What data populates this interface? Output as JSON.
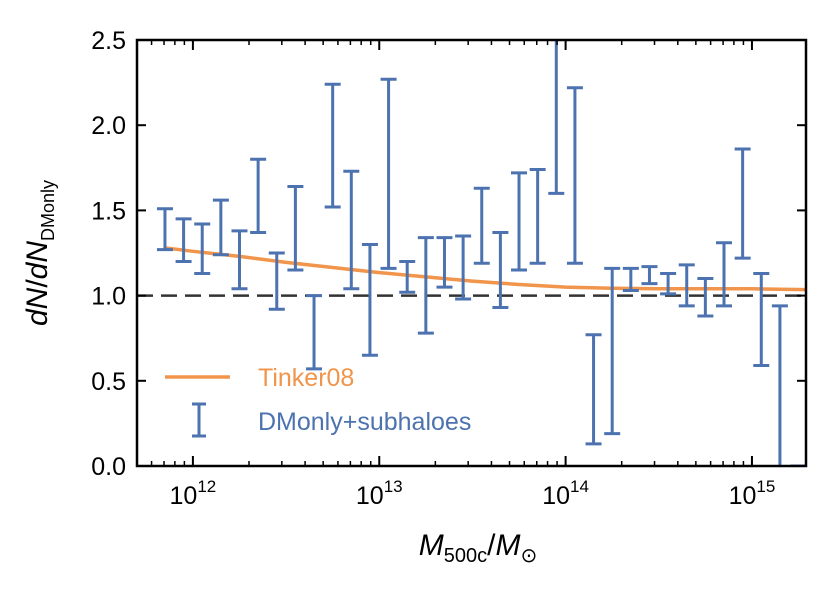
{
  "chart_data": {
    "type": "errorbar",
    "xscale": "log",
    "xlim_log10": [
      11.7,
      15.29
    ],
    "ylim": [
      0.0,
      2.5
    ],
    "xlabel": {
      "main": "M",
      "sub": "500c",
      "sep": "/",
      "main2": "M",
      "sub2": "⊙"
    },
    "ylabel": {
      "a": "dN",
      "sep": "/",
      "b": "dN",
      "sub": "DMonly"
    },
    "x_ticks": [
      {
        "base": "10",
        "exp": "12",
        "log10": 12
      },
      {
        "base": "10",
        "exp": "13",
        "log10": 13
      },
      {
        "base": "10",
        "exp": "14",
        "log10": 14
      },
      {
        "base": "10",
        "exp": "15",
        "log10": 15
      }
    ],
    "y_ticks": [
      {
        "label": "0.0",
        "value": 0.0
      },
      {
        "label": "0.5",
        "value": 0.5
      },
      {
        "label": "1.0",
        "value": 1.0
      },
      {
        "label": "1.5",
        "value": 1.5
      },
      {
        "label": "2.0",
        "value": 2.0
      },
      {
        "label": "2.5",
        "value": 2.5
      }
    ],
    "reference_line": {
      "y": 1.0,
      "style": "dashed",
      "color": "#333333"
    },
    "series": [
      {
        "name": "Tinker08",
        "kind": "line",
        "color": "#f0954b",
        "log10_x": [
          11.85,
          12.0,
          12.25,
          12.5,
          12.75,
          13.0,
          13.25,
          13.5,
          13.75,
          14.0,
          14.25,
          14.5,
          14.75,
          15.0,
          15.29
        ],
        "y": [
          1.28,
          1.26,
          1.23,
          1.195,
          1.165,
          1.135,
          1.11,
          1.085,
          1.065,
          1.05,
          1.043,
          1.04,
          1.04,
          1.04,
          1.035
        ]
      },
      {
        "name": "DMonly+subhaloes",
        "kind": "errorbar",
        "color": "#4c72b0",
        "log10_x": [
          11.85,
          11.95,
          12.05,
          12.15,
          12.25,
          12.35,
          12.45,
          12.55,
          12.65,
          12.75,
          12.85,
          12.95,
          13.05,
          13.15,
          13.25,
          13.35,
          13.45,
          13.55,
          13.65,
          13.75,
          13.85,
          13.95,
          14.05,
          14.15,
          14.25,
          14.35,
          14.45,
          14.55,
          14.65,
          14.75,
          14.85,
          14.95,
          15.05,
          15.15,
          15.25
        ],
        "y_low": [
          1.27,
          1.2,
          1.13,
          1.24,
          1.04,
          1.37,
          0.92,
          1.15,
          0.57,
          1.52,
          1.04,
          0.65,
          1.16,
          1.02,
          0.78,
          1.05,
          0.98,
          1.19,
          0.93,
          1.15,
          1.19,
          1.6,
          1.19,
          0.13,
          0.19,
          1.03,
          1.07,
          1.01,
          0.94,
          0.88,
          0.94,
          1.22,
          0.59,
          -0.05,
          0.0
        ],
        "y_high": [
          1.51,
          1.45,
          1.42,
          1.56,
          1.38,
          1.8,
          1.25,
          1.64,
          1.0,
          2.24,
          1.73,
          1.3,
          2.27,
          1.2,
          1.34,
          1.34,
          1.35,
          1.63,
          1.37,
          1.72,
          1.74,
          2.6,
          2.22,
          0.77,
          1.16,
          1.16,
          1.17,
          1.13,
          1.18,
          1.1,
          1.31,
          1.86,
          1.13,
          0.94,
          0.0
        ]
      }
    ],
    "legend": {
      "placement": "lower-left",
      "items": [
        {
          "label": "Tinker08",
          "color": "#f0954b",
          "marker": "line"
        },
        {
          "label": "DMonly+subhaloes",
          "color": "#4c72b0",
          "marker": "errorbar"
        }
      ]
    }
  }
}
